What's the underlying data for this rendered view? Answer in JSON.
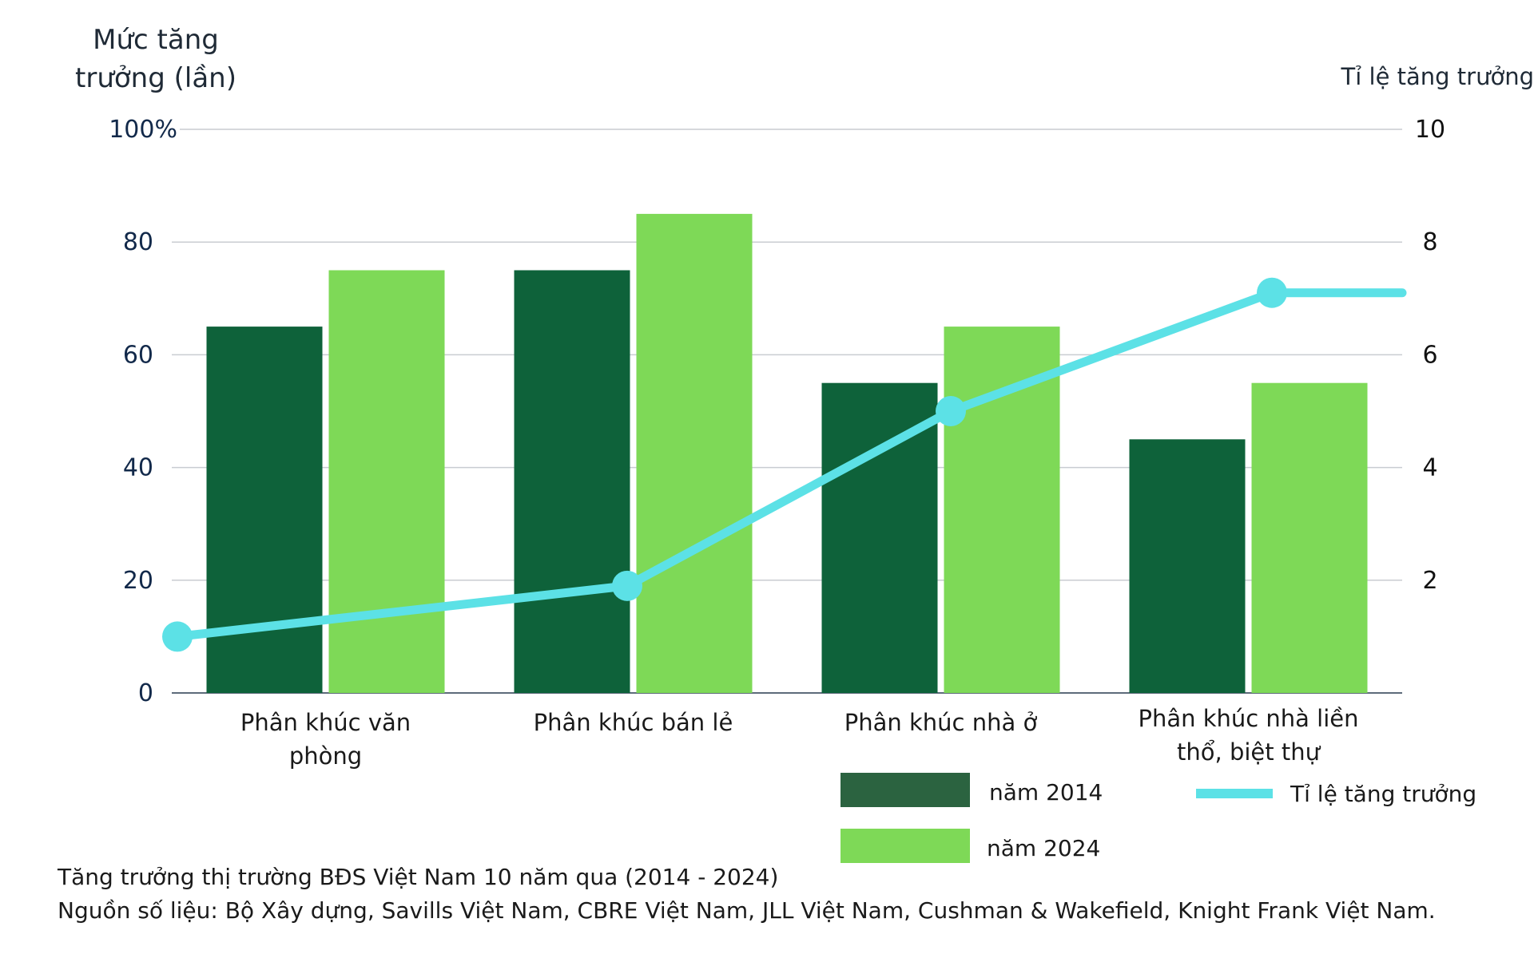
{
  "chart_data": {
    "type": "bar",
    "ylabel": "Mức tăng trưởng (lần)",
    "y_top_label": "100%",
    "ylim": [
      0,
      100
    ],
    "y_ticks": [
      "0",
      "20",
      "40",
      "60",
      "80"
    ],
    "y2label": "Tỉ lệ tăng trưởng",
    "y2lim": [
      0,
      10
    ],
    "y2_ticks": [
      "2",
      "4",
      "6",
      "8",
      "10"
    ],
    "categories": [
      [
        "Phân khúc văn",
        "phòng"
      ],
      [
        "Phân khúc bán lẻ"
      ],
      [
        "Phân khúc nhà ở"
      ],
      [
        "Phân khúc nhà liền",
        "thổ, biệt thự"
      ]
    ],
    "series": [
      {
        "name": "năm 2014",
        "type": "bar",
        "axis": "left",
        "color": "#0e623a",
        "values": [
          65,
          75,
          55,
          45
        ]
      },
      {
        "name": "năm 2024",
        "type": "bar",
        "axis": "right_bar",
        "color": "#7ed957",
        "values": [
          75,
          85,
          65,
          55
        ]
      },
      {
        "name": "Tỉ lệ tăng trưởng",
        "type": "line",
        "axis": "right",
        "color": "#5ce1e6",
        "values": [
          1.0,
          1.9,
          5.0,
          7.1
        ]
      }
    ],
    "grid": true,
    "legend": "bottom-right"
  },
  "footer": {
    "line1": "Tăng trưởng thị trường BĐS Việt Nam 10 năm qua (2014 - 2024)",
    "line2": "Nguồn số liệu: Bộ Xây dựng, Savills Việt Nam, CBRE Việt Nam, JLL Việt Nam, Cushman & Wakefield, Knight Frank Việt Nam."
  },
  "legend_swatch_colors": {
    "y2014": "#2b6340",
    "y2024": "#7ed957",
    "line": "#5ce1e6"
  }
}
